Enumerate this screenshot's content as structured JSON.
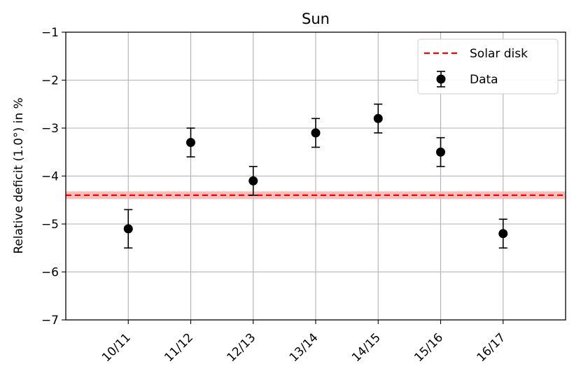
{
  "chart_data": {
    "type": "scatter",
    "title": "Sun",
    "xlabel": "",
    "ylabel": "Relative deficit (1.0°) in %",
    "categories": [
      "10/11",
      "11/12",
      "12/13",
      "13/14",
      "14/15",
      "15/16",
      "16/17"
    ],
    "xlim": [
      -1,
      7
    ],
    "ylim": [
      -7,
      -1
    ],
    "yticks": [
      "−7",
      "−6",
      "−5",
      "−4",
      "−3",
      "−2",
      "−1"
    ],
    "ytick_values": [
      -7,
      -6,
      -5,
      -4,
      -3,
      -2,
      -1
    ],
    "grid": true,
    "legend_position": "top-right",
    "series": [
      {
        "name": "Data",
        "values": [
          -5.1,
          -3.3,
          -4.1,
          -3.1,
          -2.8,
          -3.5,
          -5.2
        ],
        "errors": [
          0.4,
          0.3,
          0.3,
          0.3,
          0.3,
          0.3,
          0.3
        ],
        "color": "#000000"
      }
    ],
    "reference_line": {
      "name": "Solar disk",
      "value": -4.4,
      "band": [
        -4.48,
        -4.32
      ],
      "color": "#ff0000",
      "band_color": "#f6b3b3"
    }
  }
}
